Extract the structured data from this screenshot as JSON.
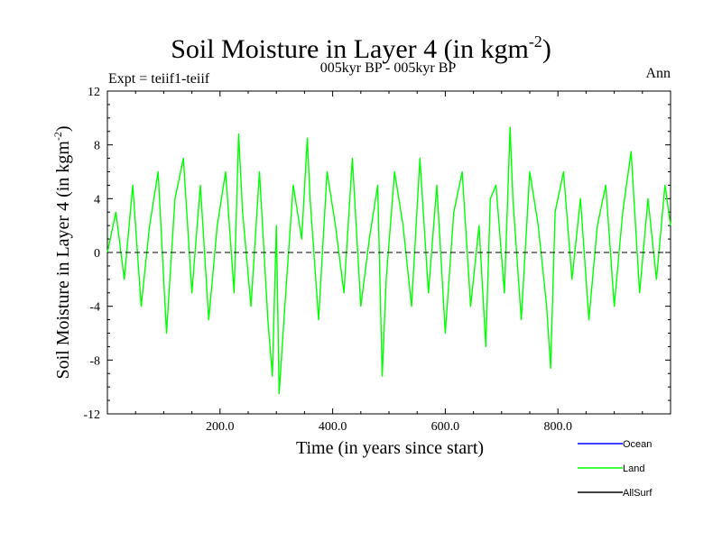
{
  "chart_data": {
    "type": "line",
    "title": "Soil Moisture in Layer 4 (in kgm",
    "title_sup": "-2",
    "title_close": ")",
    "subtitle": "005kyr BP - 005kyr BP",
    "left_note": "Expt = teiif1-teiif",
    "right_note": "Ann",
    "xlabel": "Time (in years since start)",
    "ylabel": "Soil Moisture in Layer 4 (in kgm",
    "ylabel_sup": "-2",
    "ylabel_close": ")",
    "xlim": [
      0,
      1000
    ],
    "ylim": [
      -12,
      12
    ],
    "x_ticks": [
      200,
      400,
      600,
      800
    ],
    "x_tick_labels": [
      "200.0",
      "400.0",
      "600.0",
      "800.0"
    ],
    "y_ticks": [
      -12,
      -8,
      -4,
      0,
      4,
      8,
      12
    ],
    "y_tick_labels": [
      "-12",
      "-8",
      "-4",
      "0",
      "4",
      "8",
      "12"
    ],
    "zero_line": {
      "y": 0,
      "style": "dashed",
      "color": "#000000"
    },
    "legend_placement": "bottom-right, below plot",
    "series": [
      {
        "name": "Ocean",
        "color": "#0000ff",
        "x": [],
        "values": []
      },
      {
        "name": "Land",
        "color": "#00ff00",
        "x": [
          0,
          15,
          30,
          45,
          60,
          75,
          90,
          105,
          120,
          135,
          150,
          165,
          180,
          195,
          210,
          225,
          233,
          240,
          255,
          270,
          285,
          293,
          300,
          305,
          315,
          330,
          345,
          355,
          360,
          375,
          390,
          405,
          420,
          435,
          450,
          465,
          480,
          488,
          495,
          510,
          525,
          540,
          555,
          570,
          585,
          600,
          615,
          630,
          645,
          660,
          672,
          680,
          690,
          705,
          715,
          720,
          735,
          750,
          765,
          780,
          787,
          795,
          810,
          825,
          840,
          855,
          870,
          885,
          900,
          915,
          930,
          945,
          960,
          975,
          990,
          1000
        ],
        "values": [
          0,
          3,
          -2,
          5,
          -4,
          2,
          6,
          -6,
          4,
          7,
          -3,
          5,
          -5,
          2,
          6,
          -3,
          8.8,
          3,
          -4,
          6,
          -5,
          -9.2,
          2,
          -10.5,
          -4,
          5,
          1,
          8.5,
          4,
          -5,
          6,
          2,
          -3,
          7,
          -4,
          1,
          5,
          -9.2,
          -2,
          6,
          2,
          -4,
          7,
          -3,
          5,
          -6,
          3,
          6,
          -4,
          2,
          -7,
          4,
          5,
          -3,
          9.3,
          4,
          -5,
          6,
          2,
          -4,
          -8.6,
          3,
          6,
          -2,
          4,
          -5,
          2,
          5,
          -4,
          3,
          7.5,
          -3,
          4,
          -2,
          5,
          2
        ]
      },
      {
        "name": "AllSurf",
        "color": "#000000",
        "x": [],
        "values": []
      }
    ]
  }
}
